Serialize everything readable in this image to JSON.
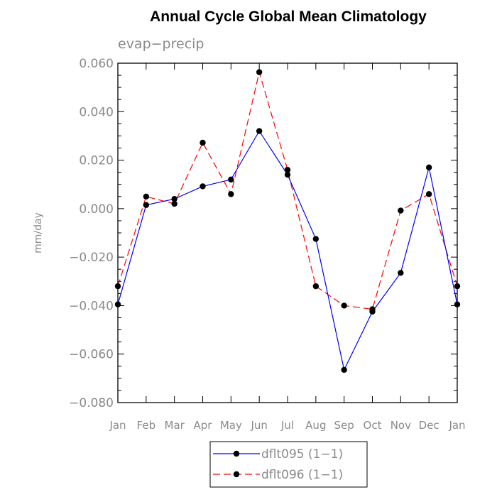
{
  "chart_data": {
    "type": "line",
    "title": "Annual Cycle Global Mean Climatology",
    "subtitle": "evap−precip",
    "ylabel": "mm/day",
    "xlabel": "",
    "categories": [
      "Jan",
      "Feb",
      "Mar",
      "Apr",
      "May",
      "Jun",
      "Jul",
      "Aug",
      "Sep",
      "Oct",
      "Nov",
      "Dec",
      "Jan"
    ],
    "ylim": [
      -0.08,
      0.06
    ],
    "yticks": [
      0.06,
      0.04,
      0.02,
      0.0,
      -0.02,
      -0.04,
      -0.06,
      -0.08
    ],
    "ytick_labels": [
      "0.060",
      "0.040",
      "0.020",
      "0.000",
      "−0.020",
      "−0.040",
      "−0.060",
      "−0.080"
    ],
    "grid": false,
    "legend_position": "bottom-center",
    "series": [
      {
        "name": "dflt095 (1−1)",
        "color": "#0000ff",
        "dash": "solid",
        "marker": "filled-circle",
        "values": [
          -0.0395,
          0.0015,
          0.004,
          0.0092,
          0.012,
          0.032,
          0.014,
          -0.0125,
          -0.0665,
          -0.0425,
          -0.0265,
          0.017,
          -0.0395
        ]
      },
      {
        "name": "dflt096 (1−1)",
        "color": "#ff0000",
        "dash": "dashed",
        "marker": "filled-circle",
        "values": [
          -0.032,
          0.005,
          0.002,
          0.0272,
          0.006,
          0.0563,
          0.016,
          -0.032,
          -0.04,
          -0.0415,
          -0.0008,
          0.006,
          -0.032
        ]
      }
    ]
  }
}
